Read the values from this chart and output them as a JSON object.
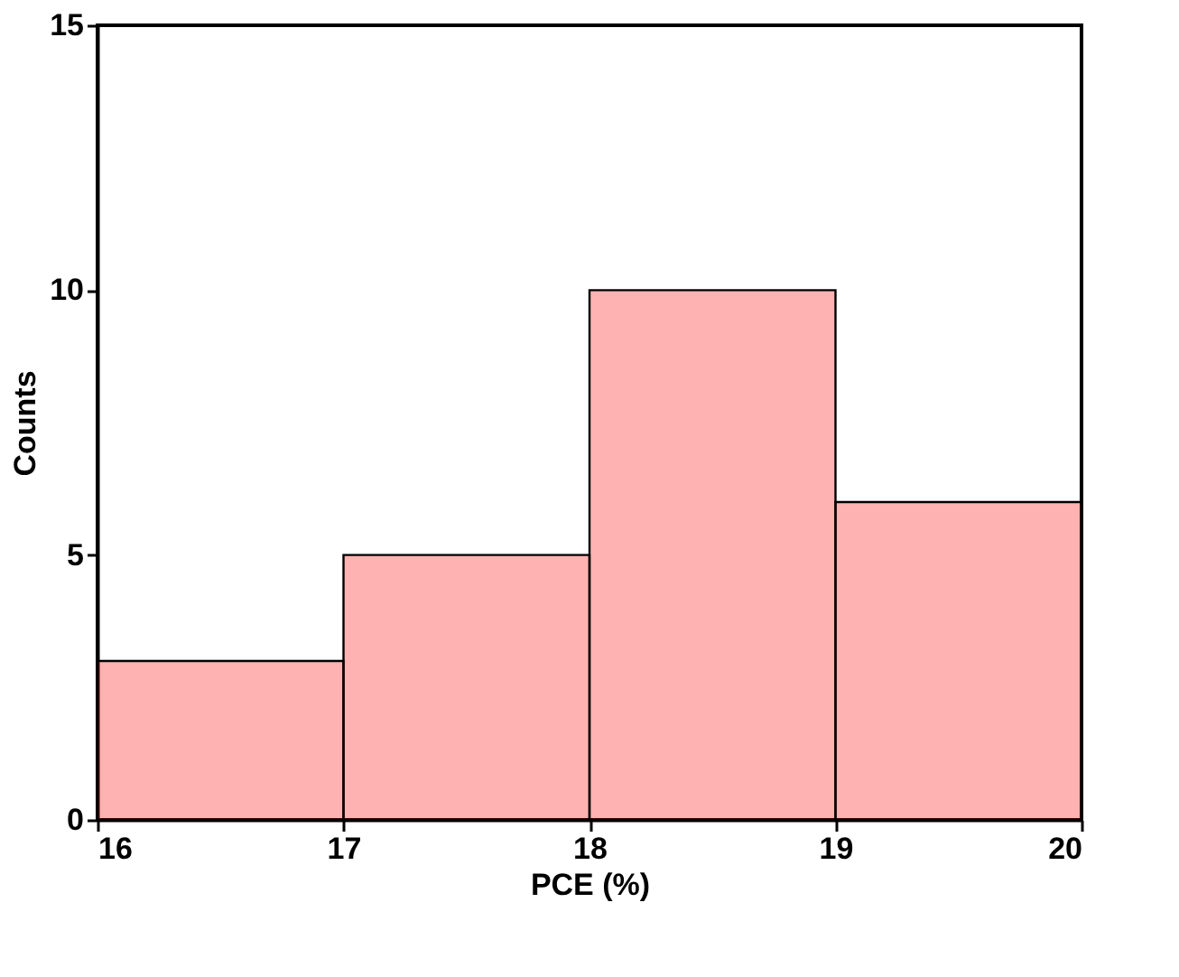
{
  "chart_data": {
    "type": "histogram",
    "xlabel": "PCE (%)",
    "ylabel": "Counts",
    "bins": [
      16,
      17,
      18,
      19,
      20
    ],
    "values": [
      3,
      5,
      10,
      6
    ],
    "color": "#ff0000",
    "xlim": [
      16,
      20
    ],
    "xticks": [
      16,
      17,
      18,
      19,
      20
    ],
    "ylim": [
      0,
      15
    ],
    "yticks": [
      0,
      5,
      10,
      15
    ],
    "grid": false
  }
}
